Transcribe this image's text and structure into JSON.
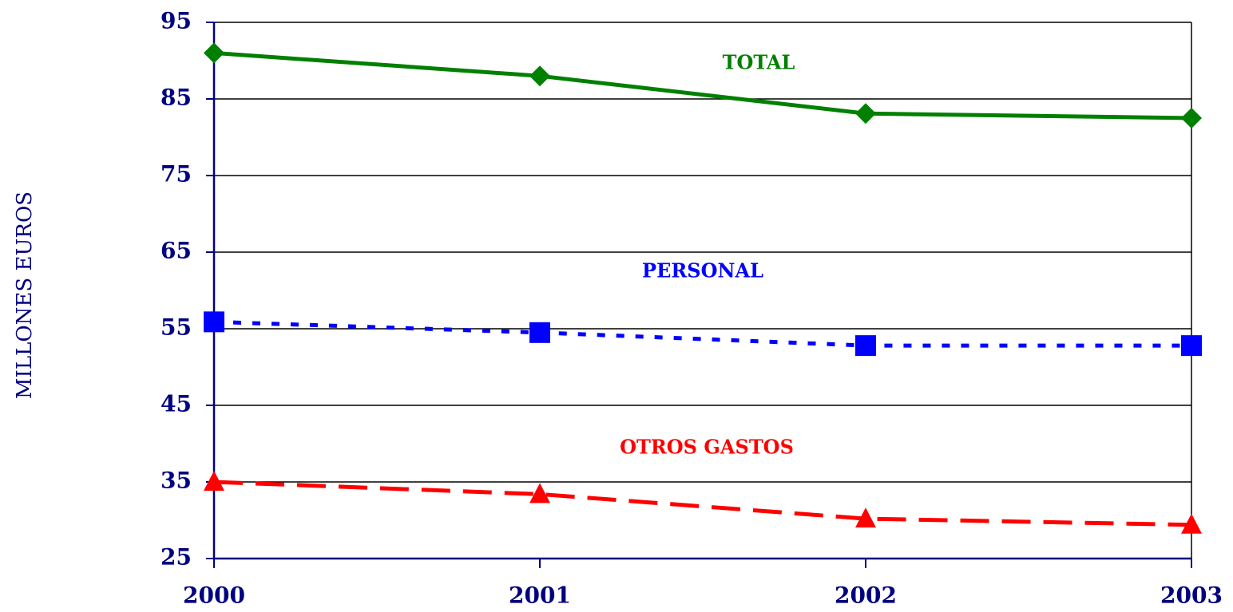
{
  "chart_data": {
    "type": "line",
    "y_label": "MILLONES EUROS",
    "categories": [
      "2000",
      "2001",
      "2002",
      "2003"
    ],
    "series": [
      {
        "name": "TOTAL",
        "color": "#008000",
        "line_style": "solid",
        "marker": "diamond",
        "values": [
          91,
          88,
          83.1,
          82.5
        ]
      },
      {
        "name": "PERSONAL",
        "color": "#0000ff",
        "line_style": "dotted",
        "marker": "square",
        "values": [
          55.9,
          54.5,
          52.8,
          52.8
        ]
      },
      {
        "name": "OTROS GASTOS",
        "color": "#ff0000",
        "line_style": "dashed",
        "marker": "triangle",
        "values": [
          35,
          33.4,
          30.2,
          29.4
        ]
      }
    ],
    "ylim": [
      25,
      95
    ],
    "yticks": [
      25,
      35,
      45,
      55,
      65,
      75,
      85,
      95
    ],
    "grid": true
  }
}
